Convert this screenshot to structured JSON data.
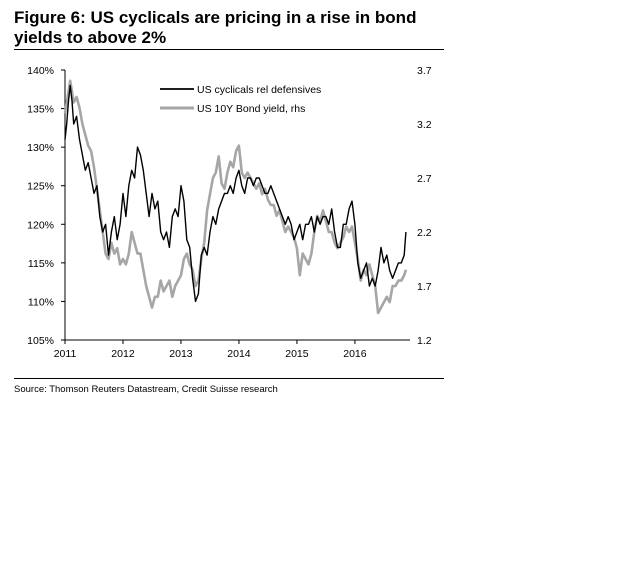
{
  "header": {
    "title": "Figure 6: US cyclicals are pricing in a rise in bond yields to above 2%"
  },
  "footer": {
    "source": "Source: Thomson Reuters Datastream, Credit Suisse research"
  },
  "chart_data": {
    "type": "line",
    "title": "Figure 6: US cyclicals are pricing in a rise in bond yields to above 2%",
    "xlim": [
      2011.0,
      2016.95
    ],
    "x_ticks": [
      2011,
      2012,
      2013,
      2014,
      2015,
      2016
    ],
    "x_tick_labels": [
      "2011",
      "2012",
      "2013",
      "2014",
      "2015",
      "2016"
    ],
    "y_left": {
      "lim": [
        105,
        140
      ],
      "ticks": [
        105,
        110,
        115,
        120,
        125,
        130,
        135,
        140
      ],
      "tick_labels": [
        "105%",
        "110%",
        "115%",
        "120%",
        "125%",
        "130%",
        "135%",
        "140%"
      ]
    },
    "y_right": {
      "lim": [
        1.2,
        3.7
      ],
      "ticks": [
        1.2,
        1.7,
        2.2,
        2.7,
        3.2,
        3.7
      ],
      "tick_labels": [
        "1.2",
        "1.7",
        "2.2",
        "2.7",
        "3.2",
        "3.7"
      ]
    },
    "legend": [
      "US cyclicals rel defensives",
      "US 10Y Bond yield, rhs"
    ],
    "legend_position": "top-center",
    "series": [
      {
        "name": "US cyclicals rel defensives",
        "axis": "left",
        "color": "#000000",
        "x": [
          2011.0,
          2011.03,
          2011.06,
          2011.09,
          2011.12,
          2011.15,
          2011.2,
          2011.25,
          2011.3,
          2011.35,
          2011.4,
          2011.45,
          2011.5,
          2011.55,
          2011.6,
          2011.65,
          2011.7,
          2011.75,
          2011.8,
          2011.85,
          2011.9,
          2011.95,
          2012.0,
          2012.05,
          2012.1,
          2012.15,
          2012.2,
          2012.25,
          2012.3,
          2012.35,
          2012.4,
          2012.45,
          2012.5,
          2012.55,
          2012.6,
          2012.65,
          2012.7,
          2012.75,
          2012.8,
          2012.85,
          2012.9,
          2012.95,
          2013.0,
          2013.05,
          2013.1,
          2013.15,
          2013.2,
          2013.25,
          2013.3,
          2013.35,
          2013.4,
          2013.45,
          2013.5,
          2013.55,
          2013.6,
          2013.65,
          2013.7,
          2013.75,
          2013.8,
          2013.85,
          2013.9,
          2013.95,
          2014.0,
          2014.05,
          2014.1,
          2014.15,
          2014.2,
          2014.25,
          2014.3,
          2014.35,
          2014.4,
          2014.45,
          2014.5,
          2014.55,
          2014.6,
          2014.65,
          2014.7,
          2014.75,
          2014.8,
          2014.85,
          2014.9,
          2014.95,
          2015.0,
          2015.05,
          2015.1,
          2015.15,
          2015.2,
          2015.25,
          2015.3,
          2015.35,
          2015.4,
          2015.45,
          2015.5,
          2015.55,
          2015.6,
          2015.65,
          2015.7,
          2015.75,
          2015.8,
          2015.85,
          2015.9,
          2015.95,
          2016.0,
          2016.05,
          2016.1,
          2016.15,
          2016.2,
          2016.25,
          2016.3,
          2016.35,
          2016.4,
          2016.45,
          2016.5,
          2016.55,
          2016.6,
          2016.65,
          2016.7,
          2016.75,
          2016.8,
          2016.85,
          2016.88
        ],
        "values": [
          131,
          133,
          136,
          138,
          136,
          133,
          134,
          131,
          129,
          127,
          128,
          126,
          124,
          125,
          121,
          119,
          120,
          116,
          119,
          121,
          118,
          120,
          124,
          121,
          125,
          127,
          126,
          130,
          129,
          127,
          124,
          121,
          124,
          122,
          123,
          119,
          118,
          119,
          117,
          121,
          122,
          121,
          125,
          123,
          118,
          117,
          113,
          110,
          111,
          116,
          117,
          116,
          119,
          121,
          120,
          122,
          123,
          124,
          124,
          125,
          124,
          126,
          127,
          125,
          124,
          126,
          126,
          125,
          126,
          126,
          125,
          124,
          124,
          125,
          124,
          123,
          122,
          121,
          120,
          121,
          120,
          118,
          119,
          120,
          118,
          120,
          120,
          121,
          119,
          121,
          120,
          121,
          121,
          120,
          122,
          119,
          117,
          117,
          120,
          120,
          122,
          123,
          120,
          115,
          113,
          114,
          115,
          112,
          113,
          112,
          114,
          117,
          115,
          116,
          114,
          113,
          114,
          115,
          115,
          116,
          119
        ]
      },
      {
        "name": "US 10Y Bond yield, rhs",
        "axis": "right",
        "color": "#a6a6a6",
        "x": [
          2011.0,
          2011.03,
          2011.06,
          2011.09,
          2011.12,
          2011.15,
          2011.2,
          2011.25,
          2011.3,
          2011.35,
          2011.4,
          2011.45,
          2011.5,
          2011.55,
          2011.6,
          2011.65,
          2011.7,
          2011.75,
          2011.8,
          2011.85,
          2011.9,
          2011.95,
          2012.0,
          2012.05,
          2012.1,
          2012.15,
          2012.2,
          2012.25,
          2012.3,
          2012.35,
          2012.4,
          2012.45,
          2012.5,
          2012.55,
          2012.6,
          2012.65,
          2012.7,
          2012.75,
          2012.8,
          2012.85,
          2012.9,
          2012.95,
          2013.0,
          2013.05,
          2013.1,
          2013.15,
          2013.2,
          2013.25,
          2013.3,
          2013.35,
          2013.4,
          2013.45,
          2013.5,
          2013.55,
          2013.6,
          2013.65,
          2013.7,
          2013.75,
          2013.8,
          2013.85,
          2013.9,
          2013.95,
          2014.0,
          2014.05,
          2014.1,
          2014.15,
          2014.2,
          2014.25,
          2014.3,
          2014.35,
          2014.4,
          2014.45,
          2014.5,
          2014.55,
          2014.6,
          2014.65,
          2014.7,
          2014.75,
          2014.8,
          2014.85,
          2014.9,
          2014.95,
          2015.0,
          2015.05,
          2015.1,
          2015.15,
          2015.2,
          2015.25,
          2015.3,
          2015.35,
          2015.4,
          2015.45,
          2015.5,
          2015.55,
          2015.6,
          2015.65,
          2015.7,
          2015.75,
          2015.8,
          2015.85,
          2015.9,
          2015.95,
          2016.0,
          2016.05,
          2016.1,
          2016.15,
          2016.2,
          2016.25,
          2016.3,
          2016.35,
          2016.4,
          2016.45,
          2016.5,
          2016.55,
          2016.6,
          2016.65,
          2016.7,
          2016.75,
          2016.8,
          2016.85,
          2016.88
        ],
        "values": [
          3.3,
          3.4,
          3.5,
          3.6,
          3.5,
          3.4,
          3.45,
          3.35,
          3.2,
          3.1,
          3.0,
          2.95,
          2.8,
          2.6,
          2.4,
          2.2,
          2.0,
          1.95,
          2.1,
          2.0,
          2.05,
          1.9,
          1.95,
          1.9,
          2.0,
          2.2,
          2.1,
          2.0,
          2.0,
          1.85,
          1.7,
          1.6,
          1.5,
          1.6,
          1.6,
          1.75,
          1.65,
          1.7,
          1.75,
          1.6,
          1.7,
          1.75,
          1.8,
          1.95,
          2.0,
          1.9,
          1.85,
          1.7,
          1.75,
          1.95,
          2.1,
          2.4,
          2.55,
          2.7,
          2.75,
          2.9,
          2.65,
          2.6,
          2.75,
          2.85,
          2.8,
          2.95,
          3.0,
          2.75,
          2.7,
          2.75,
          2.7,
          2.65,
          2.6,
          2.65,
          2.55,
          2.6,
          2.5,
          2.45,
          2.45,
          2.35,
          2.4,
          2.3,
          2.2,
          2.25,
          2.2,
          2.15,
          2.05,
          1.8,
          2.0,
          1.95,
          1.9,
          2.0,
          2.2,
          2.35,
          2.3,
          2.4,
          2.3,
          2.2,
          2.2,
          2.1,
          2.05,
          2.1,
          2.15,
          2.25,
          2.2,
          2.25,
          2.1,
          1.95,
          1.75,
          1.85,
          1.8,
          1.9,
          1.8,
          1.7,
          1.45,
          1.5,
          1.55,
          1.6,
          1.55,
          1.7,
          1.7,
          1.75,
          1.75,
          1.8,
          1.85
        ]
      }
    ]
  }
}
